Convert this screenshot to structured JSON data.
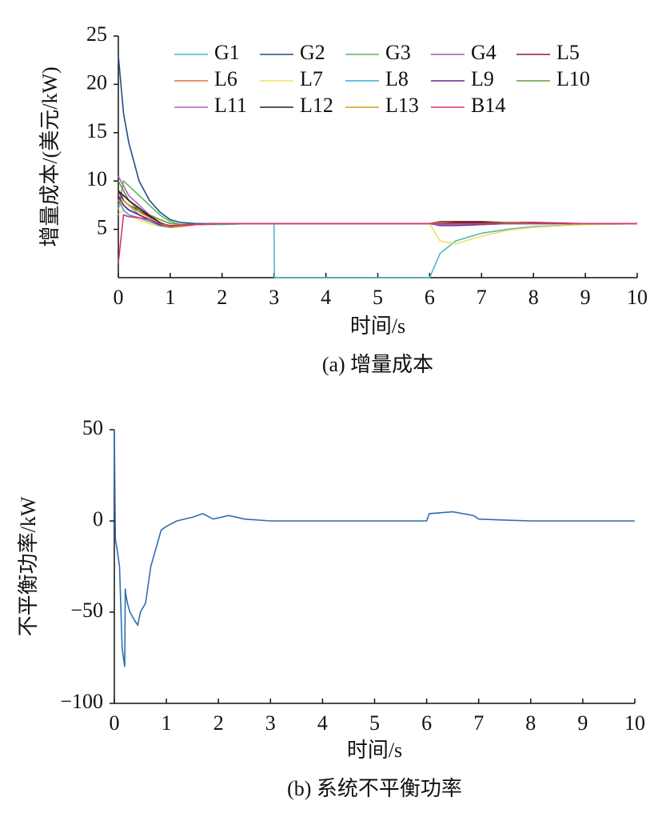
{
  "chart_data": [
    {
      "type": "line",
      "caption": "(a) 增量成本",
      "xlabel": "时间/s",
      "ylabel": "增量成本/(美元/kW)",
      "xlim": [
        0,
        10
      ],
      "xticks": [
        0,
        1,
        2,
        3,
        4,
        5,
        6,
        7,
        8,
        9,
        10
      ],
      "ylim": [
        0,
        25
      ],
      "yticks": [
        5,
        10,
        15,
        20,
        25
      ],
      "legend": "top",
      "x": [
        0,
        0.1,
        0.2,
        0.4,
        0.6,
        0.8,
        1,
        1.2,
        1.5,
        2,
        2.5,
        3,
        3.01,
        5.99,
        6,
        6.2,
        6.5,
        7,
        7.5,
        8,
        9,
        10
      ],
      "series": [
        {
          "name": "G1",
          "color": "#4db8c8",
          "values": [
            9,
            8,
            7.5,
            6.5,
            6,
            5.6,
            5.4,
            5.4,
            5.5,
            5.5,
            5.6,
            5.6,
            0,
            0,
            0,
            2.5,
            3.8,
            4.6,
            5.0,
            5.3,
            5.5,
            5.6
          ]
        },
        {
          "name": "G2",
          "color": "#1f4e8c",
          "values": [
            23,
            17,
            14,
            10,
            8,
            6.8,
            6,
            5.7,
            5.6,
            5.6,
            5.6,
            5.6,
            5.6,
            5.6,
            5.6,
            5.6,
            5.6,
            5.6,
            5.6,
            5.6,
            5.6,
            5.6
          ]
        },
        {
          "name": "G3",
          "color": "#5cb85c",
          "values": [
            7,
            10,
            9.5,
            8.5,
            7.5,
            6.5,
            5.8,
            5.5,
            5.5,
            5.6,
            5.6,
            5.6,
            5.6,
            5.6,
            5.6,
            5.6,
            5.6,
            5.6,
            5.6,
            5.6,
            5.6,
            5.6
          ]
        },
        {
          "name": "G4",
          "color": "#8e5cb8",
          "values": [
            8,
            8.5,
            8,
            7,
            6.2,
            5.6,
            5.3,
            5.4,
            5.5,
            5.6,
            5.6,
            5.6,
            5.6,
            5.6,
            5.6,
            5.5,
            5.4,
            5.5,
            5.6,
            5.6,
            5.6,
            5.6
          ]
        },
        {
          "name": "L5",
          "color": "#8b1a2b",
          "values": [
            9,
            8,
            7.5,
            7,
            6.3,
            5.6,
            5.2,
            5.3,
            5.5,
            5.6,
            5.6,
            5.6,
            5.6,
            5.6,
            5.6,
            5.8,
            5.8,
            5.8,
            5.7,
            5.7,
            5.6,
            5.6
          ]
        },
        {
          "name": "L6",
          "color": "#f06a3a",
          "values": [
            8,
            7.5,
            7,
            6.5,
            6,
            5.5,
            5.2,
            5.3,
            5.5,
            5.6,
            5.6,
            5.6,
            5.6,
            5.6,
            5.6,
            5.7,
            5.7,
            5.7,
            5.7,
            5.6,
            5.6,
            5.6
          ]
        },
        {
          "name": "L7",
          "color": "#f0e060",
          "values": [
            6.5,
            7,
            6.5,
            6,
            5.6,
            5.3,
            5.3,
            5.4,
            5.5,
            5.6,
            5.6,
            5.6,
            5.6,
            5.6,
            5.6,
            3.8,
            3.5,
            4.3,
            4.9,
            5.2,
            5.5,
            5.6
          ]
        },
        {
          "name": "L8",
          "color": "#38a8d8",
          "values": [
            8,
            7,
            6.5,
            6.2,
            5.8,
            5.4,
            5.2,
            5.3,
            5.5,
            5.6,
            5.6,
            5.6,
            5.6,
            5.6,
            5.6,
            5.6,
            5.6,
            5.6,
            5.6,
            5.6,
            5.6,
            5.6
          ]
        },
        {
          "name": "L9",
          "color": "#5a2a8a",
          "values": [
            8.5,
            7.5,
            7,
            6.5,
            6,
            5.5,
            5.2,
            5.3,
            5.5,
            5.6,
            5.6,
            5.6,
            5.6,
            5.6,
            5.6,
            5.4,
            5.4,
            5.5,
            5.6,
            5.6,
            5.6,
            5.6
          ]
        },
        {
          "name": "L10",
          "color": "#6a9a3a",
          "values": [
            10,
            9,
            8,
            7,
            6.5,
            6,
            5.6,
            5.5,
            5.5,
            5.6,
            5.6,
            5.6,
            5.6,
            5.6,
            5.6,
            5.7,
            5.7,
            5.7,
            5.7,
            5.6,
            5.6,
            5.6
          ]
        },
        {
          "name": "L11",
          "color": "#b060c0",
          "values": [
            10.5,
            9.5,
            8.5,
            7.5,
            6.5,
            5.7,
            5.3,
            5.4,
            5.5,
            5.6,
            5.6,
            5.6,
            5.6,
            5.6,
            5.6,
            5.5,
            5.5,
            5.6,
            5.6,
            5.6,
            5.6,
            5.6
          ]
        },
        {
          "name": "L12",
          "color": "#222222",
          "values": [
            9,
            8.5,
            8,
            7.2,
            6.4,
            5.7,
            5.3,
            5.4,
            5.5,
            5.6,
            5.6,
            5.6,
            5.6,
            5.6,
            5.6,
            5.6,
            5.7,
            5.7,
            5.6,
            5.6,
            5.6,
            5.6
          ]
        },
        {
          "name": "L13",
          "color": "#d4a020",
          "values": [
            7.5,
            8,
            7.5,
            6.8,
            6.2,
            5.6,
            5.2,
            5.3,
            5.5,
            5.6,
            5.6,
            5.6,
            5.6,
            5.6,
            5.6,
            5.6,
            5.6,
            5.6,
            5.6,
            5.6,
            5.6,
            5.6
          ]
        },
        {
          "name": "B14",
          "color": "#e0307a",
          "values": [
            1.5,
            6.5,
            6.3,
            6.2,
            6,
            5.6,
            5.4,
            5.4,
            5.5,
            5.6,
            5.6,
            5.6,
            5.6,
            5.6,
            5.6,
            5.6,
            5.6,
            5.6,
            5.6,
            5.6,
            5.6,
            5.6
          ]
        }
      ]
    },
    {
      "type": "line",
      "caption": "(b) 系统不平衡功率",
      "xlabel": "时间/s",
      "ylabel": "不平衡功率/kW",
      "xlim": [
        0,
        10
      ],
      "xticks": [
        0,
        1,
        2,
        3,
        4,
        5,
        6,
        7,
        8,
        9,
        10
      ],
      "ylim": [
        -100,
        50
      ],
      "yticks": [
        {
          "value": -100,
          "label": "−100"
        },
        {
          "value": -50,
          "label": "−50"
        },
        0,
        50
      ],
      "x": [
        0,
        0.02,
        0.05,
        0.1,
        0.15,
        0.2,
        0.21,
        0.22,
        0.25,
        0.3,
        0.4,
        0.45,
        0.5,
        0.6,
        0.7,
        0.8,
        0.9,
        1,
        1.2,
        1.5,
        1.7,
        1.9,
        2.2,
        2.5,
        3,
        4,
        5,
        6,
        6.05,
        6.5,
        6.9,
        7,
        7.5,
        8,
        9,
        10
      ],
      "series": [
        {
          "color": "#2e6fb0",
          "values": [
            50,
            -10,
            -15,
            -25,
            -70,
            -80,
            -37,
            -40,
            -45,
            -50,
            -55,
            -57,
            -50,
            -45,
            -25,
            -15,
            -5,
            -3,
            0,
            2,
            4,
            1,
            3,
            1,
            0,
            0,
            0,
            0,
            4,
            5,
            3,
            1,
            0.5,
            0,
            0,
            0
          ]
        }
      ]
    }
  ]
}
